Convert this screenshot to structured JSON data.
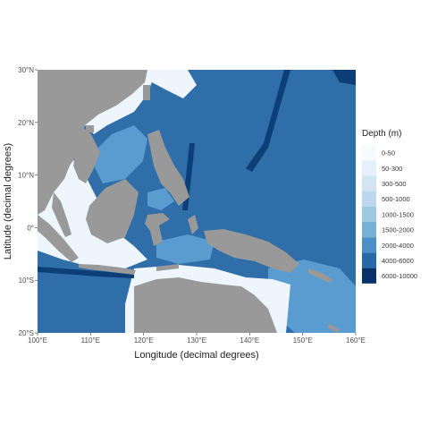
{
  "map": {
    "x_axis": {
      "title": "Longitude (decimal degrees)",
      "ticks": [
        {
          "value": 100,
          "label": "100°E"
        },
        {
          "value": 110,
          "label": "110°E"
        },
        {
          "value": 120,
          "label": "120°E"
        },
        {
          "value": 130,
          "label": "130°E"
        },
        {
          "value": 140,
          "label": "140°E"
        },
        {
          "value": 150,
          "label": "150°E"
        },
        {
          "value": 160,
          "label": "160°E"
        }
      ],
      "range": [
        100,
        160
      ]
    },
    "y_axis": {
      "title": "Latitude (decimal degrees)",
      "ticks": [
        {
          "value": 30,
          "label": "30°N"
        },
        {
          "value": 20,
          "label": "20°N"
        },
        {
          "value": 10,
          "label": "10°N"
        },
        {
          "value": 0,
          "label": "0°"
        },
        {
          "value": -10,
          "label": "10°S"
        },
        {
          "value": -20,
          "label": "20°S"
        }
      ],
      "range": [
        -20,
        30
      ]
    },
    "legend": {
      "title": "Depth (m)",
      "position": "right",
      "items": [
        {
          "label": "0-50",
          "color": "#f7fbff"
        },
        {
          "label": "50-300",
          "color": "#e6f0fa"
        },
        {
          "label": "300-500",
          "color": "#d3e4f3"
        },
        {
          "label": "500-1000",
          "color": "#bdd7ee"
        },
        {
          "label": "1000-1500",
          "color": "#9ecae1"
        },
        {
          "label": "1500-2000",
          "color": "#78b1d6"
        },
        {
          "label": "2000-4000",
          "color": "#4a90c6"
        },
        {
          "label": "4000-6000",
          "color": "#2869a8"
        },
        {
          "label": "6000-10000",
          "color": "#08306b"
        }
      ]
    },
    "colors": {
      "land": "#999999",
      "deep_ocean": "#2f6ea9",
      "trench": "#0c3f78",
      "shelf": "#eef5fc",
      "mid": "#5a9bd0"
    }
  }
}
